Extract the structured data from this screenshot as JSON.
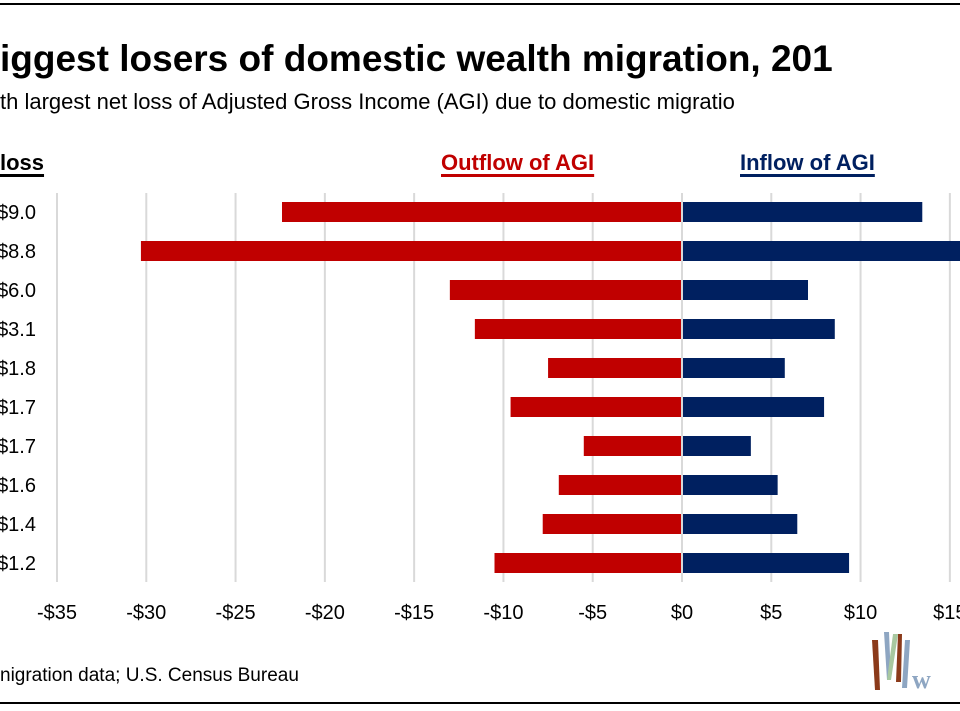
{
  "title": "iggest losers of domestic wealth migration, 201",
  "subtitle": "th largest net loss of Adjusted Gross Income (AGI) due to domestic migratio",
  "source": "nigration data; U.S. Census Bureau",
  "headers": {
    "net_loss": "loss",
    "outflow": "Outflow of AGI",
    "inflow": "Inflow of AGI"
  },
  "colors": {
    "outflow": "#C00000",
    "inflow": "#002060",
    "grid": "#D9D9D9"
  },
  "chart_data": {
    "type": "bar",
    "orientation": "horizontal-diverging",
    "xlim": [
      -35,
      15
    ],
    "x_ticks": [
      "-$35",
      "-$30",
      "-$25",
      "-$20",
      "-$15",
      "-$10",
      "-$5",
      "$0",
      "$5",
      "$10",
      "$15"
    ],
    "x_tick_values": [
      -35,
      -30,
      -25,
      -20,
      -15,
      -10,
      -5,
      0,
      5,
      10,
      15
    ],
    "grid": true,
    "net_loss_labels": [
      "$9.0",
      "$8.8",
      "$6.0",
      "$3.1",
      "$1.8",
      "$1.7",
      "$1.7",
      "$1.6",
      "$1.4",
      "$1.2"
    ],
    "series": [
      {
        "name": "Outflow of AGI",
        "values": [
          -22.4,
          -30.3,
          -13.0,
          -11.6,
          -7.5,
          -9.6,
          -5.5,
          -6.9,
          -7.8,
          -10.5
        ]
      },
      {
        "name": "Inflow of AGI",
        "values": [
          13.4,
          21.5,
          7.0,
          8.5,
          5.7,
          7.9,
          3.8,
          5.3,
          6.4,
          9.3
        ]
      }
    ]
  }
}
